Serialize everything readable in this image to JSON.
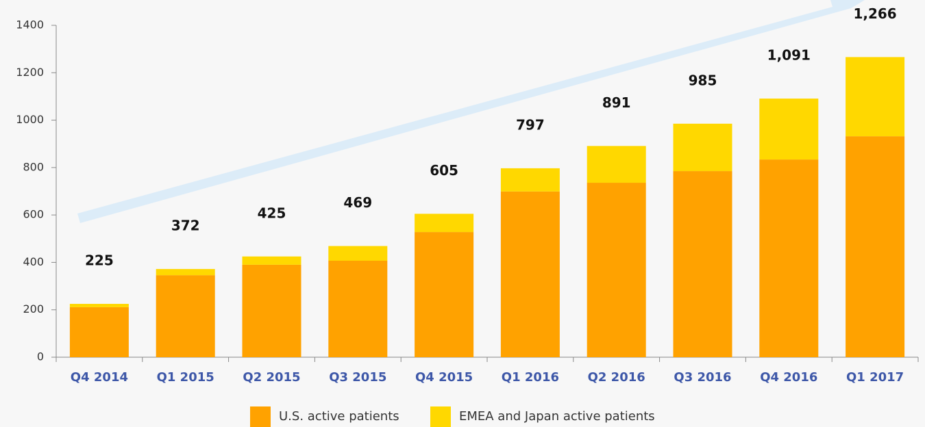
{
  "chart_data": {
    "type": "stacked_bar",
    "categories": [
      "Q4 2014",
      "Q1 2015",
      "Q2 2015",
      "Q3 2015",
      "Q4 2015",
      "Q1 2016",
      "Q2 2016",
      "Q3 2016",
      "Q4 2016",
      "Q1 2017"
    ],
    "series": [
      {
        "name": "U.S. active patients",
        "color": "#ffa200",
        "values": [
          211,
          346,
          390,
          407,
          528,
          699,
          736,
          785,
          834,
          932
        ]
      },
      {
        "name": "EMEA and Japan active patients",
        "color": "#ffd800",
        "values": [
          14,
          26,
          35,
          62,
          77,
          98,
          155,
          200,
          257,
          334
        ]
      }
    ],
    "totals": [
      225,
      372,
      425,
      469,
      605,
      797,
      891,
      985,
      1091,
      1266
    ],
    "total_labels": [
      "225",
      "372",
      "425",
      "469",
      "605",
      "797",
      "891",
      "985",
      "1,091",
      "1,266"
    ],
    "ylim": [
      0,
      1400
    ],
    "yticks": [
      0,
      200,
      400,
      600,
      800,
      1000,
      1200,
      1400
    ]
  }
}
